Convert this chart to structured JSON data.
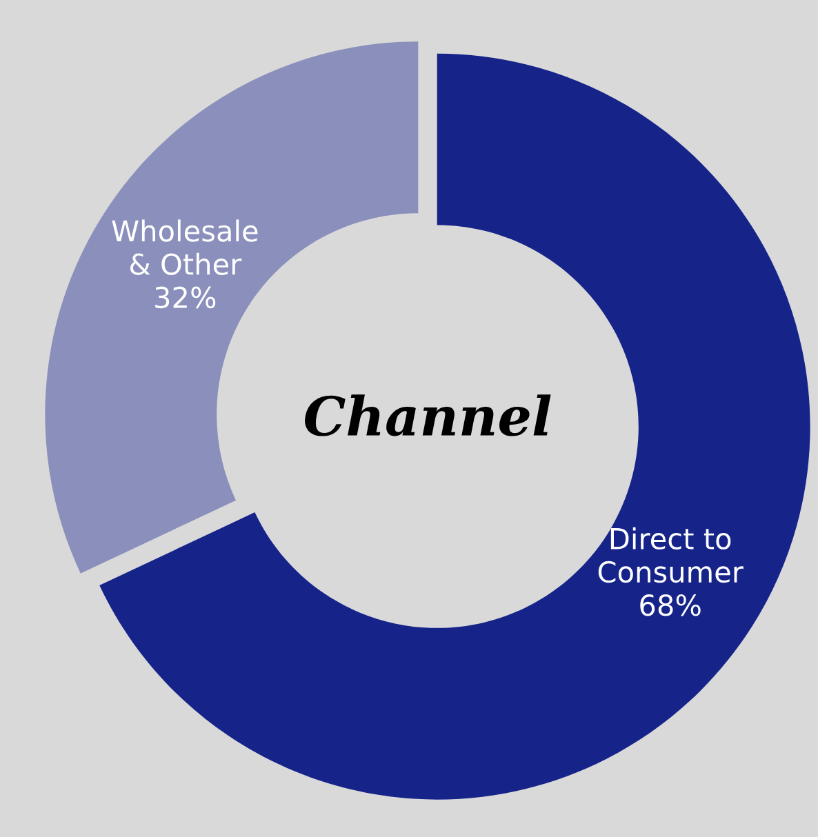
{
  "chart_data": {
    "type": "donut",
    "title": "Channel",
    "categories": [
      "Direct to\nConsumer",
      "Wholesale\n& Other"
    ],
    "values": [
      68,
      32
    ],
    "value_labels": [
      "68%",
      "32%"
    ],
    "colors": [
      "#16248a",
      "#8a90bb"
    ],
    "legend": false
  }
}
